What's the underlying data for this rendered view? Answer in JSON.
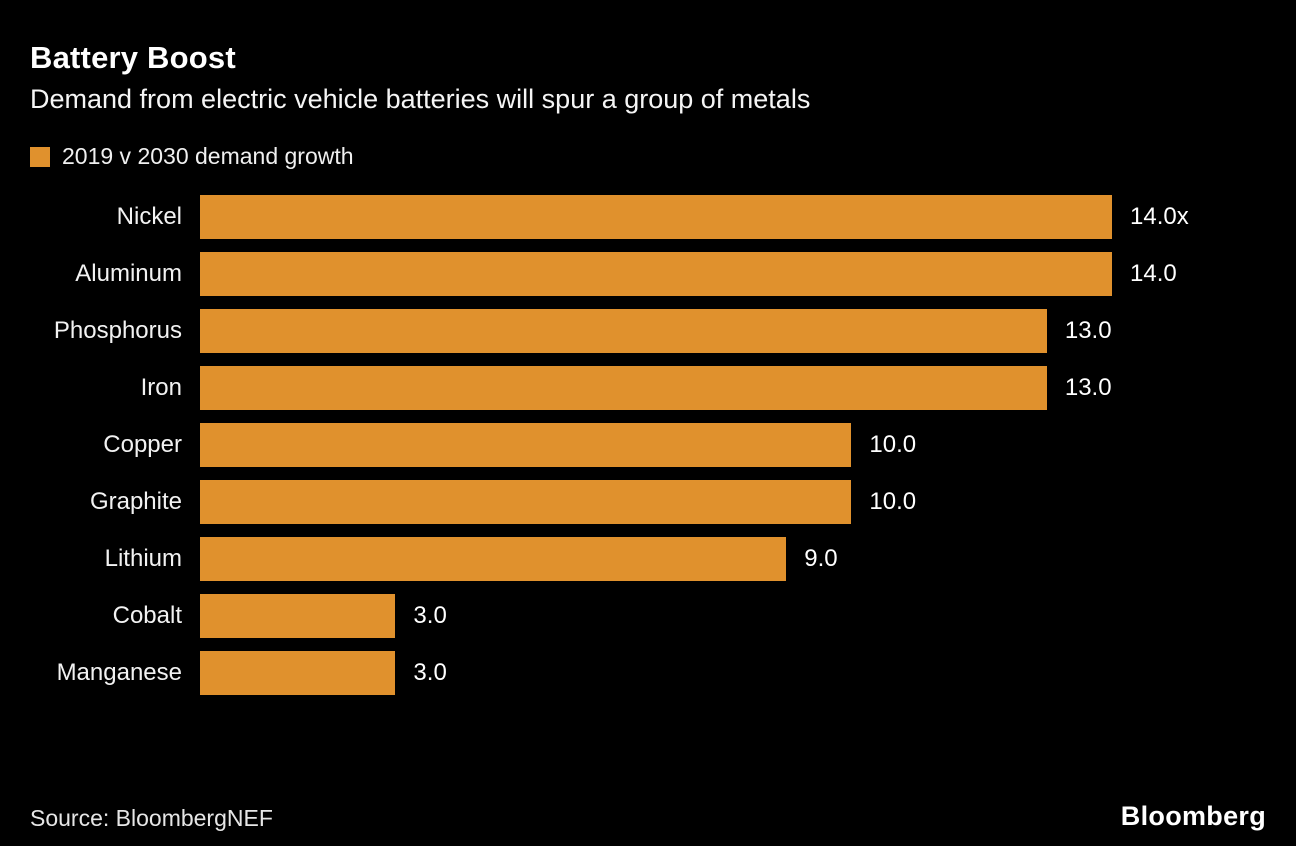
{
  "header": {
    "title": "Battery Boost",
    "subtitle": "Demand from electric vehicle batteries will spur a group of metals"
  },
  "legend": {
    "label": "2019 v 2030 demand growth",
    "color": "#E0912D"
  },
  "chart_data": {
    "type": "bar",
    "orientation": "horizontal",
    "title": "Battery Boost",
    "subtitle": "Demand from electric vehicle batteries will spur a group of metals",
    "series_name": "2019 v 2030 demand growth",
    "categories": [
      "Nickel",
      "Aluminum",
      "Phosphorus",
      "Iron",
      "Copper",
      "Graphite",
      "Lithium",
      "Cobalt",
      "Manganese"
    ],
    "values": [
      14.0,
      14.0,
      13.0,
      13.0,
      10.0,
      10.0,
      9.0,
      3.0,
      3.0
    ],
    "value_labels": [
      "14.0x",
      "14.0",
      "13.0",
      "13.0",
      "10.0",
      "10.0",
      "9.0",
      "3.0",
      "3.0"
    ],
    "xlim": [
      0,
      14
    ],
    "bar_color": "#E0912D",
    "background": "#000000",
    "grid": false,
    "legend_position": "top-left"
  },
  "footer": {
    "source": "Source:  BloombergNEF",
    "logo": "Bloomberg"
  }
}
